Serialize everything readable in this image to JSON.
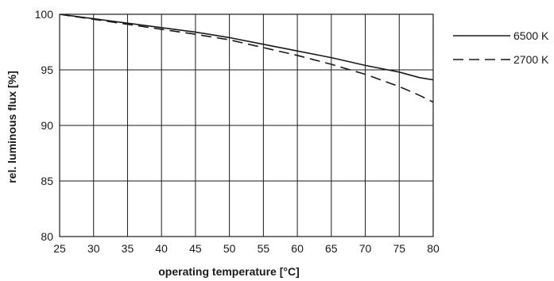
{
  "chart_data": {
    "type": "line",
    "xlabel": "operating temperature [°C]",
    "ylabel": "rel. luminous flux [%]",
    "xlim": [
      25,
      80
    ],
    "ylim": [
      80,
      100
    ],
    "x_ticks": [
      "25",
      "30",
      "35",
      "40",
      "45",
      "50",
      "55",
      "60",
      "65",
      "70",
      "75",
      "80"
    ],
    "y_ticks": [
      "80",
      "85",
      "90",
      "95",
      "100"
    ],
    "grid": true,
    "legend_position": "right",
    "series": [
      {
        "name": "6500 K",
        "style": "solid",
        "color": "#1a1a1a",
        "x": [
          25,
          30,
          35,
          40,
          45,
          50,
          55,
          60,
          65,
          70,
          75,
          78,
          80
        ],
        "y": [
          100,
          99.6,
          99.2,
          98.8,
          98.4,
          97.9,
          97.3,
          96.7,
          96.1,
          95.4,
          94.8,
          94.3,
          94.1
        ]
      },
      {
        "name": "2700 K",
        "style": "dashed",
        "color": "#1a1a1a",
        "x": [
          25,
          30,
          35,
          40,
          45,
          50,
          55,
          60,
          65,
          70,
          75,
          78,
          80
        ],
        "y": [
          100,
          99.55,
          99.1,
          98.65,
          98.2,
          97.7,
          97.0,
          96.3,
          95.5,
          94.6,
          93.5,
          92.7,
          92.1
        ]
      }
    ]
  }
}
